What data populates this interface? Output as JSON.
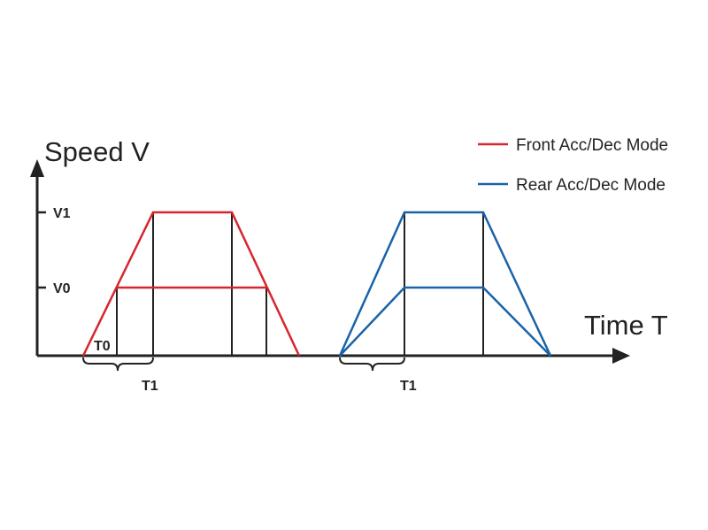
{
  "axes": {
    "y_title": "Speed V",
    "x_title": "Time T",
    "y_ticks": [
      "V1",
      "V0"
    ]
  },
  "legend": {
    "front": {
      "label": "Front Acc/Dec Mode",
      "color": "#d6262e"
    },
    "rear": {
      "label": "Rear Acc/Dec Mode",
      "color": "#1a63a8"
    }
  },
  "annotations": {
    "t0": "T0",
    "t1_front": "T1",
    "t1_rear": "T1"
  },
  "colors": {
    "axis": "#222222",
    "guide": "#222222"
  }
}
